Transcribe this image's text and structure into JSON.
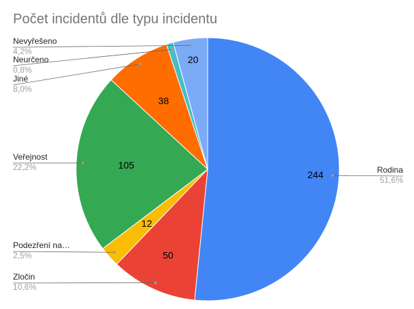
{
  "chart_data": {
    "type": "pie",
    "title": "Počet incidentů dle typu incidentu",
    "slices": [
      {
        "name": "Rodina",
        "value": 244,
        "percent_label": "51,6%",
        "color": "#4285f4"
      },
      {
        "name": "Zločin",
        "value": 50,
        "percent_label": "10,6%",
        "color": "#ea4335"
      },
      {
        "name": "Podezření na…",
        "value": 12,
        "percent_label": "2,5%",
        "color": "#fbbc04"
      },
      {
        "name": "Veřejnost",
        "value": 105,
        "percent_label": "22,2%",
        "color": "#34a853"
      },
      {
        "name": "Jiné",
        "value": 38,
        "percent_label": "8,0%",
        "color": "#ff6d01"
      },
      {
        "name": "Neurčeno",
        "value": 4,
        "value_label": "",
        "percent_label": "0,8%",
        "color": "#46bdc6"
      },
      {
        "name": "Nevyřešeno",
        "value": 20,
        "percent_label": "4,2%",
        "color": "#7baaf7"
      }
    ]
  }
}
